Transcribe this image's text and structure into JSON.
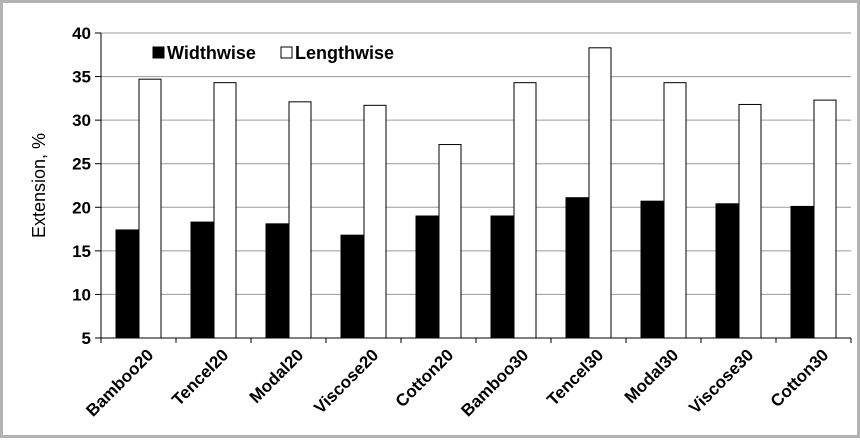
{
  "chart_data": {
    "type": "bar",
    "categories": [
      "Bamboo20",
      "Tencel20",
      "Modal20",
      "Viscose20",
      "Cotton20",
      "Bamboo30",
      "Tencel30",
      "Modal30",
      "Viscose30",
      "Cotton30"
    ],
    "series": [
      {
        "name": "Widthwise",
        "color": "#000000",
        "values": [
          17.4,
          18.3,
          18.1,
          16.8,
          19.0,
          19.0,
          21.1,
          20.7,
          20.4,
          20.1
        ]
      },
      {
        "name": "Lengthwise",
        "color": "#ffffff",
        "values": [
          34.7,
          34.3,
          32.1,
          31.7,
          27.2,
          34.3,
          38.3,
          34.3,
          31.8,
          32.3
        ]
      }
    ],
    "title": "",
    "xlabel": "",
    "ylabel": "Extension, %",
    "ylim": [
      5,
      40
    ],
    "yticks": [
      5,
      10,
      15,
      20,
      25,
      30,
      35,
      40
    ],
    "grid": true,
    "legend": "top-left"
  }
}
